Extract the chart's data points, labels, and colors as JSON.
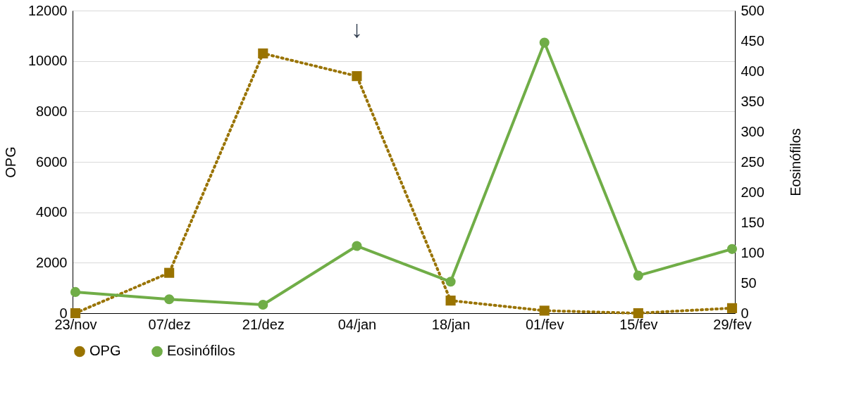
{
  "chart_data": {
    "type": "line",
    "xlabel": null,
    "ylabel": "OPG",
    "y2label": "Eosinófilos",
    "categories": [
      "23/nov",
      "07/dez",
      "21/dez",
      "04/jan",
      "18/jan",
      "01/fev",
      "15/fev",
      "29/fev"
    ],
    "series": [
      {
        "name": "OPG",
        "color": "#997300",
        "values": [
          0,
          1600,
          10300,
          9400,
          500,
          100,
          0,
          200
        ],
        "marker": "square",
        "line_style": "dotted"
      },
      {
        "name": "Eosinófilos",
        "color": "#70ad47",
        "values": [
          35,
          23,
          14,
          111,
          52,
          447,
          62,
          106
        ],
        "marker": "circle",
        "line_style": "solid",
        "axis": "y2"
      }
    ],
    "ylim": [
      0,
      12000
    ],
    "yticks": [
      0,
      2000,
      4000,
      6000,
      8000,
      10000,
      12000
    ],
    "y2lim": [
      0,
      500
    ],
    "y2ticks": [
      0,
      50,
      100,
      150,
      200,
      250,
      300,
      350,
      400,
      450,
      500
    ],
    "annotations": [
      "↓"
    ],
    "grid": "y",
    "legend": "bottom"
  }
}
